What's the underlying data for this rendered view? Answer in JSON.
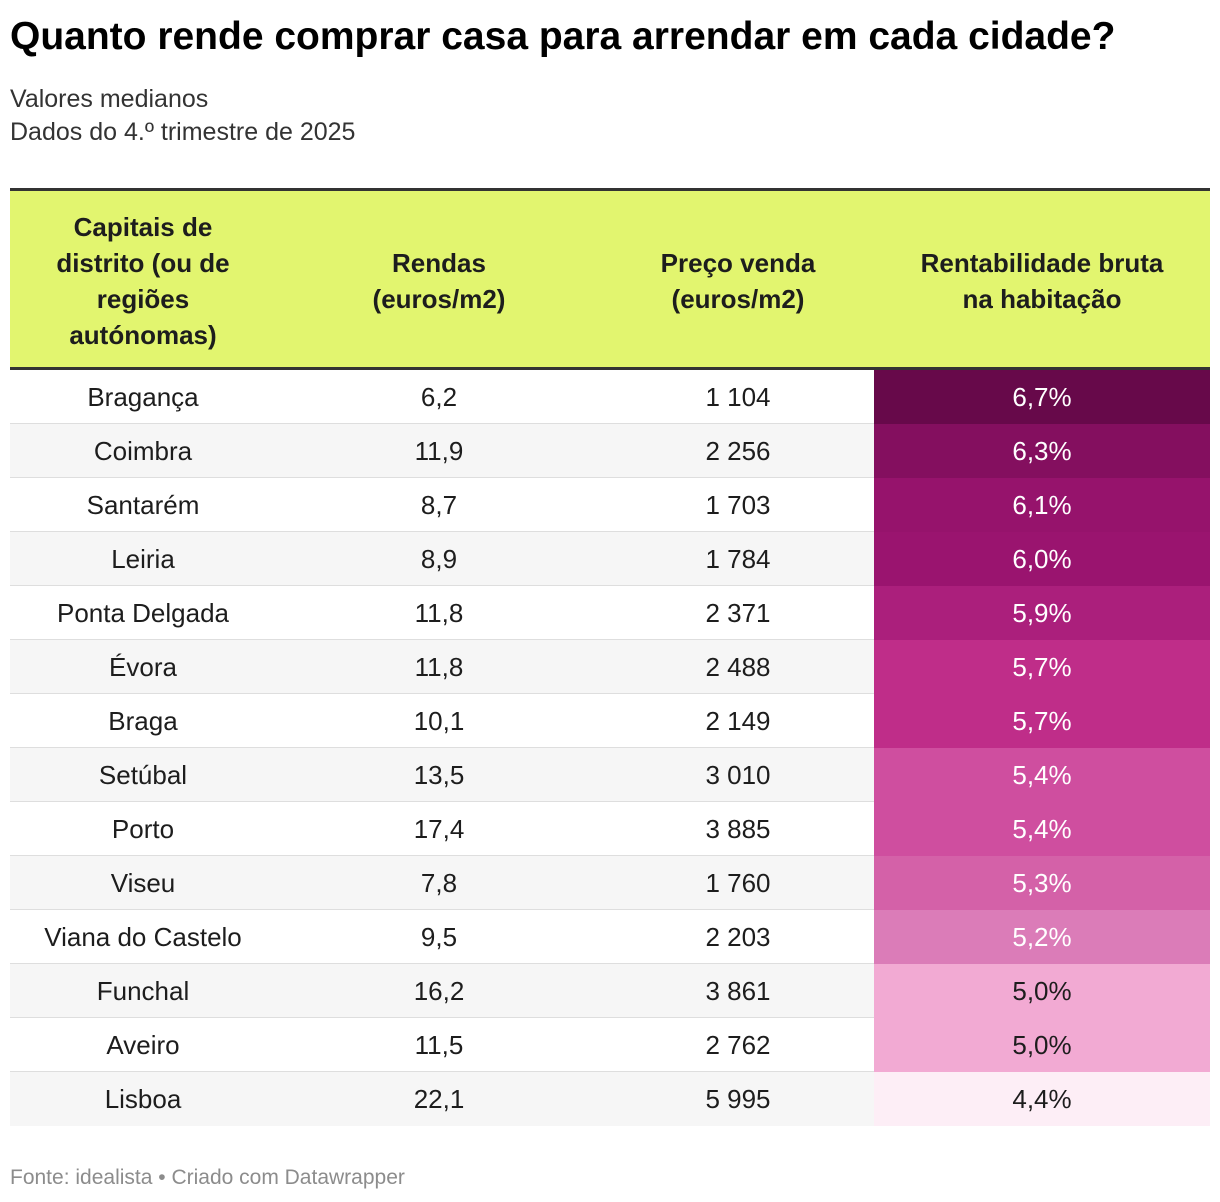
{
  "title": "Quanto rende comprar casa para arrendar em cada cidade?",
  "subtitle_line1": "Valores medianos",
  "subtitle_line2": "Dados do 4.º trimestre de 2025",
  "chart_data": {
    "type": "table",
    "columns": [
      "Capitais de distrito (ou de regiões autónomas)",
      "Rendas (euros/m2)",
      "Preço venda (euros/m2)",
      "Rentabilidade bruta na habitação"
    ],
    "column_header_lines": [
      [
        "Capitais de",
        "distrito (ou de",
        "regiões",
        "autónomas)"
      ],
      [
        "Rendas",
        "(euros/m2)"
      ],
      [
        "Preço venda",
        "(euros/m2)"
      ],
      [
        "Rentabilidade bruta",
        "na habitação"
      ]
    ],
    "rows": [
      {
        "city": "Bragança",
        "rent": "6,2",
        "price": "1 104",
        "yield": "6,7%",
        "yield_value": 6.7
      },
      {
        "city": "Coimbra",
        "rent": "11,9",
        "price": "2 256",
        "yield": "6,3%",
        "yield_value": 6.3
      },
      {
        "city": "Santarém",
        "rent": "8,7",
        "price": "1 703",
        "yield": "6,1%",
        "yield_value": 6.1
      },
      {
        "city": "Leiria",
        "rent": "8,9",
        "price": "1 784",
        "yield": "6,0%",
        "yield_value": 6.0
      },
      {
        "city": "Ponta Delgada",
        "rent": "11,8",
        "price": "2 371",
        "yield": "5,9%",
        "yield_value": 5.9
      },
      {
        "city": "Évora",
        "rent": "11,8",
        "price": "2 488",
        "yield": "5,7%",
        "yield_value": 5.7
      },
      {
        "city": "Braga",
        "rent": "10,1",
        "price": "2 149",
        "yield": "5,7%",
        "yield_value": 5.7
      },
      {
        "city": "Setúbal",
        "rent": "13,5",
        "price": "3 010",
        "yield": "5,4%",
        "yield_value": 5.4
      },
      {
        "city": "Porto",
        "rent": "17,4",
        "price": "3 885",
        "yield": "5,4%",
        "yield_value": 5.4
      },
      {
        "city": "Viseu",
        "rent": "7,8",
        "price": "1 760",
        "yield": "5,3%",
        "yield_value": 5.3
      },
      {
        "city": "Viana do Castelo",
        "rent": "9,5",
        "price": "2 203",
        "yield": "5,2%",
        "yield_value": 5.2
      },
      {
        "city": "Funchal",
        "rent": "16,2",
        "price": "3 861",
        "yield": "5,0%",
        "yield_value": 5.0
      },
      {
        "city": "Aveiro",
        "rent": "11,5",
        "price": "2 762",
        "yield": "5,0%",
        "yield_value": 5.0
      },
      {
        "city": "Lisboa",
        "rent": "22,1",
        "price": "5 995",
        "yield": "4,4%",
        "yield_value": 4.4
      }
    ],
    "yield_colors": {
      "6.7": "#67094a",
      "6.3": "#840f5f",
      "6.1": "#96136c",
      "6.0": "#9a146f",
      "5.9": "#ab1f7c",
      "5.7": "#bf2d89",
      "5.4": "#cf4e9f",
      "5.3": "#d461a8",
      "5.2": "#db7cb8",
      "5.0": "#f2aad3",
      "4.4": "#fdeef6"
    },
    "header_color": "#e2f56f"
  },
  "footer": "Fonte: idealista • Criado com Datawrapper"
}
